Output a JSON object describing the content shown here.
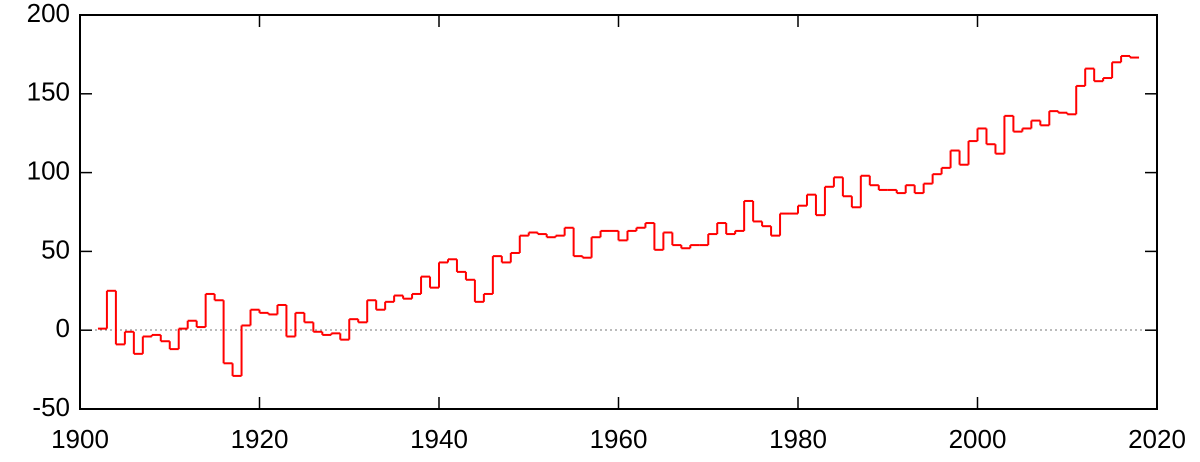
{
  "chart_data": {
    "type": "step",
    "color": "#ff0000",
    "x": [
      1902,
      1903,
      1904,
      1905,
      1906,
      1907,
      1908,
      1909,
      1910,
      1911,
      1912,
      1913,
      1914,
      1915,
      1916,
      1917,
      1918,
      1919,
      1920,
      1921,
      1922,
      1923,
      1924,
      1925,
      1926,
      1927,
      1928,
      1929,
      1930,
      1931,
      1932,
      1933,
      1934,
      1935,
      1936,
      1937,
      1938,
      1939,
      1940,
      1941,
      1942,
      1943,
      1944,
      1945,
      1946,
      1947,
      1948,
      1949,
      1950,
      1951,
      1952,
      1953,
      1954,
      1955,
      1956,
      1957,
      1958,
      1959,
      1960,
      1961,
      1962,
      1963,
      1964,
      1965,
      1966,
      1967,
      1968,
      1969,
      1970,
      1971,
      1972,
      1973,
      1974,
      1975,
      1976,
      1977,
      1978,
      1979,
      1980,
      1981,
      1982,
      1983,
      1984,
      1985,
      1986,
      1987,
      1988,
      1989,
      1990,
      1991,
      1992,
      1993,
      1994,
      1995,
      1996,
      1997,
      1998,
      1999,
      2000,
      2001,
      2002,
      2003,
      2004,
      2005,
      2006,
      2007,
      2008,
      2009,
      2010,
      2011,
      2012,
      2013,
      2014,
      2015,
      2016,
      2017
    ],
    "values": [
      1,
      25,
      -9,
      -1,
      -15,
      -4,
      -3,
      -7,
      -12,
      1,
      6,
      2,
      23,
      19,
      -21,
      -29,
      3,
      13,
      11,
      10,
      16,
      -4,
      11,
      5,
      -1,
      -3,
      -2,
      -6,
      7,
      5,
      19,
      13,
      18,
      22,
      20,
      23,
      34,
      27,
      43,
      45,
      37,
      32,
      18,
      23,
      47,
      43,
      49,
      60,
      62,
      61,
      59,
      60,
      65,
      47,
      46,
      59,
      63,
      63,
      57,
      63,
      65,
      68,
      51,
      62,
      54,
      52,
      54,
      54,
      61,
      68,
      61,
      63,
      82,
      69,
      66,
      60,
      74,
      74,
      79,
      86,
      73,
      91,
      97,
      85,
      78,
      98,
      92,
      89,
      89,
      87,
      92,
      87,
      93,
      99,
      103,
      114,
      105,
      120,
      128,
      118,
      112,
      136,
      126,
      128,
      133,
      130,
      139,
      138,
      137,
      155,
      166,
      158,
      160,
      170,
      174,
      173
    ],
    "xlim": [
      1900,
      2020
    ],
    "xticks": [
      1900,
      1920,
      1940,
      1960,
      1980,
      2000,
      2020
    ],
    "ylim": [
      -50,
      200
    ],
    "yticks": [
      -50,
      0,
      50,
      100,
      150,
      200
    ]
  }
}
